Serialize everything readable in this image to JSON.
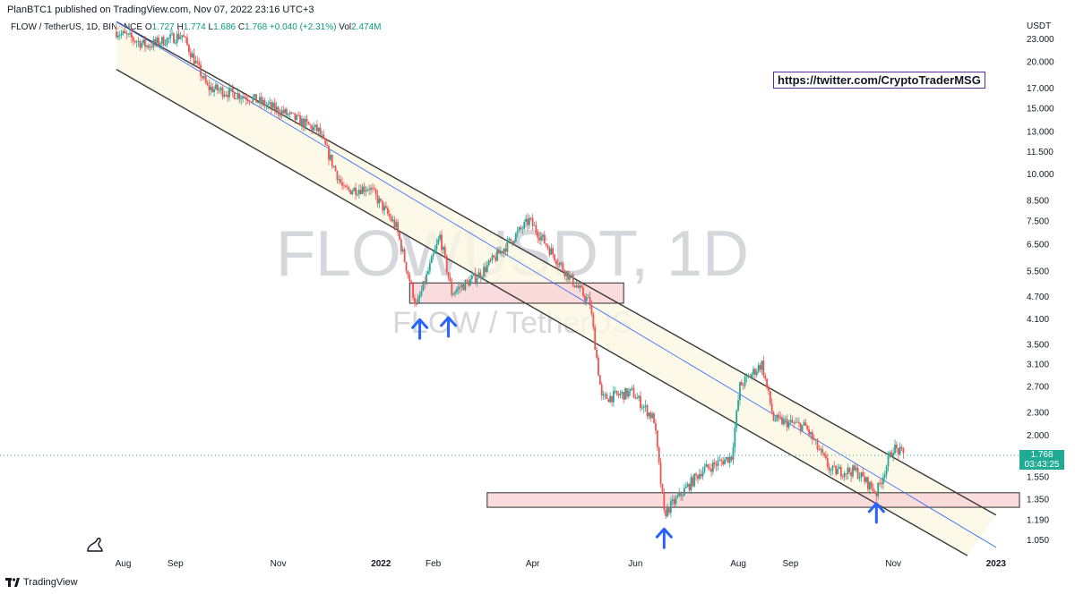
{
  "header": {
    "published": "PlanBTC1 published on TradingView.com, Nov 07, 2022 23:16 UTC+3"
  },
  "legend": {
    "symbol": "FLOW / TetherUS, 1D, BINANCE",
    "o_label": "O",
    "o": "1.727",
    "h_label": "H",
    "h": "1.774",
    "l_label": "L",
    "l": "1.686",
    "c_label": "C",
    "c": "1.768",
    "change": "+0.040 (+2.31%)",
    "vol_label": "Vol",
    "vol": "2.474M"
  },
  "watermark": {
    "big": "FLOWUSDT, 1D",
    "small": "FLOW / TetherUS"
  },
  "annotation": {
    "link": "https://twitter.com/CryptoTraderMSG"
  },
  "price_axis": {
    "currency": "USDT"
  },
  "last_price": {
    "value": "1.768",
    "countdown": "03:43:25"
  },
  "footer": {
    "brand": "TradingView"
  },
  "colors": {
    "up": "#26a69a",
    "down": "#ef5350",
    "channel": "#3a3a3a",
    "midline": "#2962ff",
    "zone": "#f8d0d4",
    "arrow": "#2962ff"
  },
  "chart_data": {
    "type": "candlestick",
    "scale": "log",
    "x_ticks": [
      "Aug",
      "Sep",
      "Nov",
      "2022",
      "Feb",
      "Apr",
      "Jun",
      "Aug",
      "Sep",
      "Nov",
      "2023"
    ],
    "y_ticks": [
      23.0,
      20.0,
      17.0,
      15.0,
      13.0,
      11.5,
      10.0,
      8.5,
      7.5,
      6.5,
      5.5,
      4.7,
      4.1,
      3.5,
      3.1,
      2.7,
      2.3,
      2.0,
      1.768,
      1.55,
      1.35,
      1.19,
      1.05
    ],
    "y_tick_labels": [
      "23.000",
      "20.000",
      "17.000",
      "15.000",
      "13.000",
      "11.500",
      "10.000",
      "8.500",
      "7.500",
      "6.500",
      "5.500",
      "4.700",
      "4.100",
      "3.500",
      "3.100",
      "2.700",
      "2.300",
      "2.000",
      "",
      "1.550",
      "1.350",
      "1.190",
      "1.050"
    ],
    "path": [
      [
        "2021-07-28",
        24.0
      ],
      [
        "2021-08-15",
        22.0
      ],
      [
        "2021-09-05",
        23.5
      ],
      [
        "2021-09-20",
        17.0
      ],
      [
        "2021-10-15",
        16.0
      ],
      [
        "2021-11-05",
        14.5
      ],
      [
        "2021-11-25",
        13.0
      ],
      [
        "2021-12-10",
        9.0
      ],
      [
        "2021-12-25",
        9.2
      ],
      [
        "2022-01-10",
        7.2
      ],
      [
        "2022-01-22",
        4.4
      ],
      [
        "2022-02-05",
        6.8
      ],
      [
        "2022-02-12",
        4.8
      ],
      [
        "2022-03-01",
        5.4
      ],
      [
        "2022-03-30",
        7.5
      ],
      [
        "2022-04-20",
        5.5
      ],
      [
        "2022-05-05",
        4.5
      ],
      [
        "2022-05-12",
        2.5
      ],
      [
        "2022-05-30",
        2.6
      ],
      [
        "2022-06-12",
        2.2
      ],
      [
        "2022-06-18",
        1.23
      ],
      [
        "2022-07-10",
        1.6
      ],
      [
        "2022-07-28",
        1.75
      ],
      [
        "2022-08-02",
        2.7
      ],
      [
        "2022-08-15",
        3.1
      ],
      [
        "2022-08-22",
        2.2
      ],
      [
        "2022-09-10",
        2.1
      ],
      [
        "2022-09-25",
        1.6
      ],
      [
        "2022-10-10",
        1.6
      ],
      [
        "2022-10-22",
        1.4
      ],
      [
        "2022-11-01",
        1.85
      ],
      [
        "2022-11-07",
        1.768
      ]
    ],
    "channel": {
      "upper": [
        [
          "2021-07-28",
          25.5
        ],
        [
          "2023-01-01",
          1.22
        ]
      ],
      "lower": [
        [
          "2021-07-28",
          19.0
        ],
        [
          "2022-12-15",
          0.95
        ]
      ],
      "mid": [
        [
          "2021-07-28",
          25.5
        ],
        [
          "2023-01-01",
          1.0
        ]
      ]
    },
    "zones": [
      {
        "from": "2022-01-18",
        "to": "2022-05-25",
        "high": 5.1,
        "low": 4.5
      },
      {
        "from": "2022-03-05",
        "to": "2023-01-31",
        "high": 1.4,
        "low": 1.28
      }
    ],
    "arrows": [
      [
        "2022-01-24",
        3.85
      ],
      [
        "2022-02-10",
        3.9
      ],
      [
        "2022-06-18",
        1.06
      ],
      [
        "2022-10-22",
        1.24
      ]
    ]
  }
}
